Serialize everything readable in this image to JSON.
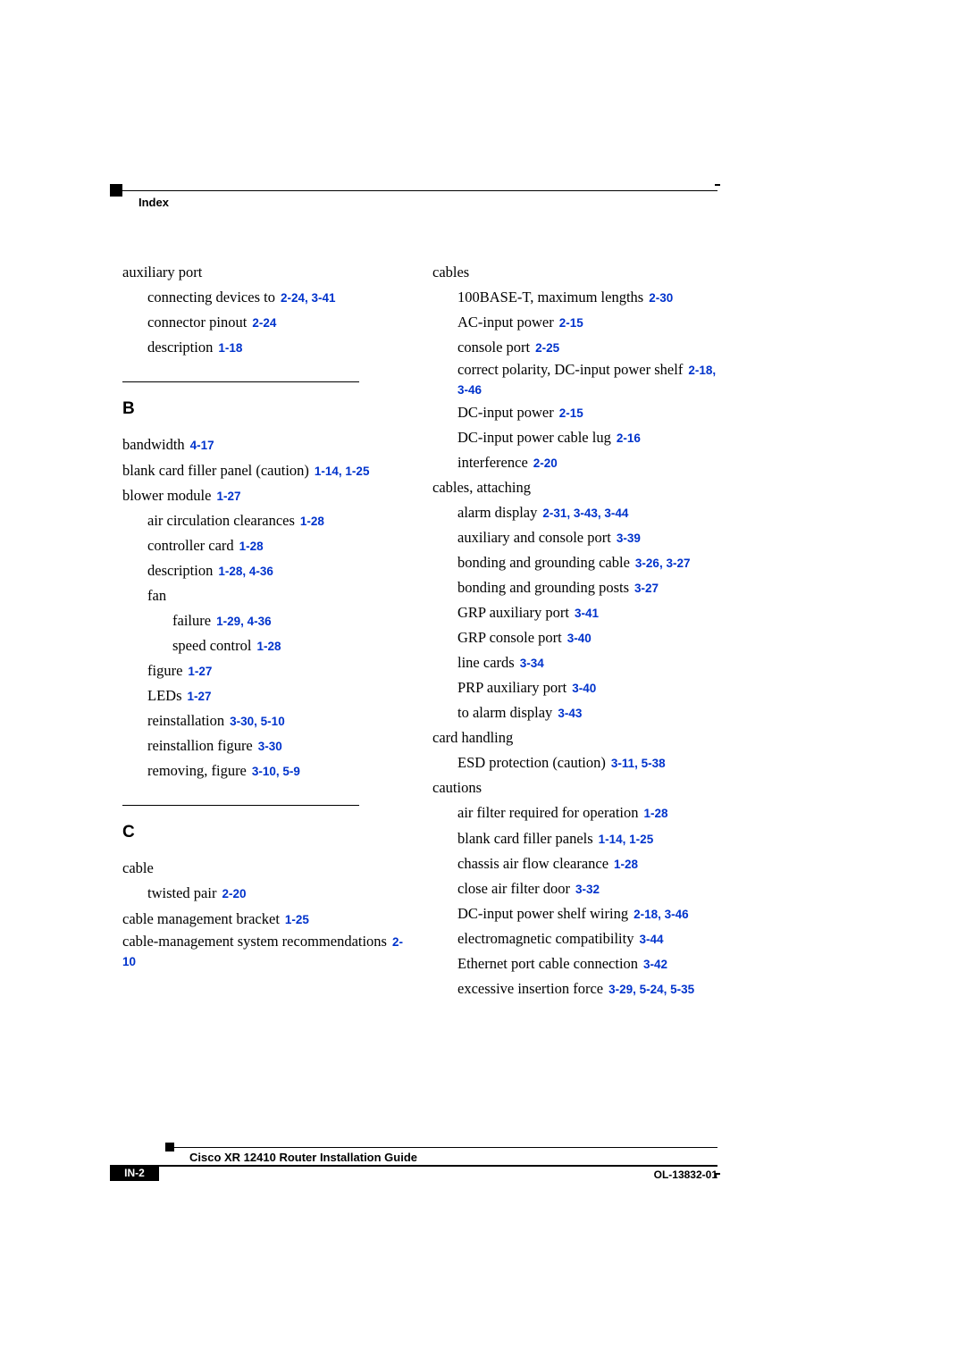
{
  "header": {
    "label": "Index"
  },
  "ref_color": "#0033cc",
  "left_column": [
    {
      "level": 0,
      "text": "auxiliary port",
      "refs": ""
    },
    {
      "level": 1,
      "text": "connecting devices to",
      "refs": "2-24, 3-41"
    },
    {
      "level": 1,
      "text": "connector pinout",
      "refs": "2-24"
    },
    {
      "level": 1,
      "text": "description",
      "refs": "1-18"
    },
    {
      "letter": "B"
    },
    {
      "level": 0,
      "text": "bandwidth",
      "refs": "4-17"
    },
    {
      "level": 0,
      "text": "blank card filler panel (caution)",
      "refs": "1-14, 1-25"
    },
    {
      "level": 0,
      "text": "blower module",
      "refs": "1-27"
    },
    {
      "level": 1,
      "text": "air circulation clearances",
      "refs": "1-28"
    },
    {
      "level": 1,
      "text": "controller card",
      "refs": "1-28"
    },
    {
      "level": 1,
      "text": "description",
      "refs": "1-28, 4-36"
    },
    {
      "level": 1,
      "text": "fan",
      "refs": ""
    },
    {
      "level": 2,
      "text": "failure",
      "refs": "1-29, 4-36"
    },
    {
      "level": 2,
      "text": "speed control",
      "refs": "1-28"
    },
    {
      "level": 1,
      "text": "figure",
      "refs": "1-27"
    },
    {
      "level": 1,
      "text": "LEDs",
      "refs": "1-27"
    },
    {
      "level": 1,
      "text": "reinstallation",
      "refs": "3-30, 5-10"
    },
    {
      "level": 1,
      "text": "reinstallion figure",
      "refs": "3-30"
    },
    {
      "level": 1,
      "text": "removing, figure",
      "refs": "3-10, 5-9"
    },
    {
      "letter": "C"
    },
    {
      "level": 0,
      "text": "cable",
      "refs": ""
    },
    {
      "level": 1,
      "text": "twisted pair",
      "refs": "2-20"
    },
    {
      "level": 0,
      "text": "cable management bracket",
      "refs": "1-25"
    },
    {
      "level": 0,
      "text": "cable-management system recommendations",
      "refs": "2-10",
      "tight": true
    }
  ],
  "right_column": [
    {
      "level": 0,
      "text": "cables",
      "refs": ""
    },
    {
      "level": 1,
      "text": "100BASE-T, maximum lengths",
      "refs": "2-30"
    },
    {
      "level": 1,
      "text": "AC-input power",
      "refs": "2-15"
    },
    {
      "level": 1,
      "text": "console port",
      "refs": "2-25"
    },
    {
      "level": 1,
      "text": "correct polarity, DC-input power shelf",
      "refs": "2-18, 3-46",
      "tight": true
    },
    {
      "level": 1,
      "text": "DC-input power",
      "refs": "2-15"
    },
    {
      "level": 1,
      "text": "DC-input power cable lug",
      "refs": "2-16"
    },
    {
      "level": 1,
      "text": "interference",
      "refs": "2-20"
    },
    {
      "level": 0,
      "text": "cables, attaching",
      "refs": ""
    },
    {
      "level": 1,
      "text": "alarm display",
      "refs": "2-31, 3-43, 3-44"
    },
    {
      "level": 1,
      "text": "auxiliary and console port",
      "refs": "3-39"
    },
    {
      "level": 1,
      "text": "bonding and grounding cable",
      "refs": "3-26, 3-27"
    },
    {
      "level": 1,
      "text": "bonding and grounding posts",
      "refs": "3-27"
    },
    {
      "level": 1,
      "text": "GRP auxiliary port",
      "refs": "3-41"
    },
    {
      "level": 1,
      "text": "GRP console port",
      "refs": "3-40"
    },
    {
      "level": 1,
      "text": "line cards",
      "refs": "3-34"
    },
    {
      "level": 1,
      "text": "PRP auxiliary port",
      "refs": "3-40"
    },
    {
      "level": 1,
      "text": "to alarm display",
      "refs": "3-43"
    },
    {
      "level": 0,
      "text": "card handling",
      "refs": ""
    },
    {
      "level": 1,
      "text": "ESD protection (caution)",
      "refs": "3-11, 5-38"
    },
    {
      "level": 0,
      "text": "cautions",
      "refs": ""
    },
    {
      "level": 1,
      "text": "air filter required for operation",
      "refs": "1-28"
    },
    {
      "level": 1,
      "text": "blank card filler panels",
      "refs": "1-14, 1-25"
    },
    {
      "level": 1,
      "text": "chassis air flow clearance",
      "refs": "1-28"
    },
    {
      "level": 1,
      "text": "close air filter door",
      "refs": "3-32"
    },
    {
      "level": 1,
      "text": "DC-input power shelf wiring",
      "refs": "2-18, 3-46"
    },
    {
      "level": 1,
      "text": "electromagnetic compatibility",
      "refs": "3-44"
    },
    {
      "level": 1,
      "text": "Ethernet port cable connection",
      "refs": "3-42"
    },
    {
      "level": 1,
      "text": "excessive insertion force",
      "refs": "3-29, 5-24, 5-35"
    }
  ],
  "footer": {
    "title": "Cisco XR 12410 Router Installation Guide",
    "page": "IN-2",
    "doc": "OL-13832-01"
  }
}
